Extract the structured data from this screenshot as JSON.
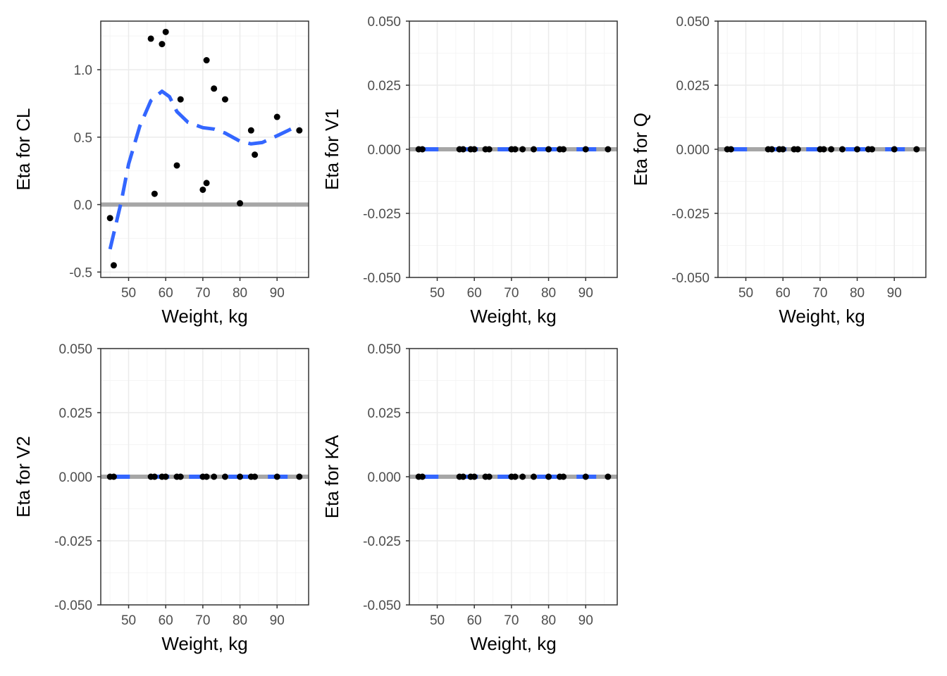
{
  "chart_data": [
    {
      "type": "scatter",
      "xlabel": "Weight, kg",
      "ylabel": "Eta for CL",
      "xlim": [
        42.5,
        98.5
      ],
      "ylim": [
        -0.54,
        1.36
      ],
      "x_ticks": [
        50,
        60,
        70,
        80,
        90
      ],
      "y_ticks": [
        -0.5,
        0.0,
        0.5,
        1.0
      ],
      "y_tick_labels": [
        "-0.5",
        "0.0",
        "0.5",
        "1.0"
      ],
      "grid": true,
      "reference_line": 0,
      "points": [
        {
          "x": 45,
          "y": -0.1
        },
        {
          "x": 46,
          "y": -0.45
        },
        {
          "x": 56,
          "y": 1.23
        },
        {
          "x": 57,
          "y": 0.08
        },
        {
          "x": 59,
          "y": 1.19
        },
        {
          "x": 60,
          "y": 1.28
        },
        {
          "x": 63,
          "y": 0.29
        },
        {
          "x": 64,
          "y": 0.78
        },
        {
          "x": 70,
          "y": 0.11
        },
        {
          "x": 71,
          "y": 1.07
        },
        {
          "x": 71,
          "y": 0.16
        },
        {
          "x": 73,
          "y": 0.86
        },
        {
          "x": 76,
          "y": 0.78
        },
        {
          "x": 80,
          "y": 0.01
        },
        {
          "x": 83,
          "y": 0.55
        },
        {
          "x": 84,
          "y": 0.37
        },
        {
          "x": 90,
          "y": 0.65
        },
        {
          "x": 96,
          "y": 0.55
        }
      ],
      "smooth": [
        {
          "x": 45,
          "y": -0.33
        },
        {
          "x": 48,
          "y": 0.02
        },
        {
          "x": 50,
          "y": 0.3
        },
        {
          "x": 53,
          "y": 0.58
        },
        {
          "x": 56,
          "y": 0.77
        },
        {
          "x": 59,
          "y": 0.84
        },
        {
          "x": 61,
          "y": 0.8
        },
        {
          "x": 63,
          "y": 0.69
        },
        {
          "x": 66,
          "y": 0.61
        },
        {
          "x": 70,
          "y": 0.57
        },
        {
          "x": 73,
          "y": 0.56
        },
        {
          "x": 76,
          "y": 0.53
        },
        {
          "x": 80,
          "y": 0.47
        },
        {
          "x": 83,
          "y": 0.45
        },
        {
          "x": 86,
          "y": 0.46
        },
        {
          "x": 90,
          "y": 0.51
        },
        {
          "x": 93,
          "y": 0.55
        },
        {
          "x": 96,
          "y": 0.59
        }
      ]
    },
    {
      "type": "scatter",
      "xlabel": "Weight, kg",
      "ylabel": "Eta for V1",
      "xlim": [
        42.5,
        98.5
      ],
      "ylim": [
        -0.05,
        0.05
      ],
      "x_ticks": [
        50,
        60,
        70,
        80,
        90
      ],
      "y_ticks": [
        -0.05,
        -0.025,
        0,
        0.025,
        0.05
      ],
      "y_tick_labels": [
        "-0.050",
        "-0.025",
        "0.000",
        "0.025",
        "0.050"
      ],
      "grid": true,
      "reference_line": 0,
      "points_x": [
        45,
        46,
        56,
        57,
        59,
        60,
        63,
        64,
        70,
        71,
        73,
        76,
        80,
        83,
        84,
        90,
        96
      ],
      "points_y": 0,
      "smooth_y": 0
    },
    {
      "type": "scatter",
      "xlabel": "Weight, kg",
      "ylabel": "Eta for Q",
      "xlim": [
        42.5,
        98.5
      ],
      "ylim": [
        -0.05,
        0.05
      ],
      "x_ticks": [
        50,
        60,
        70,
        80,
        90
      ],
      "y_ticks": [
        -0.05,
        -0.025,
        0,
        0.025,
        0.05
      ],
      "y_tick_labels": [
        "-0.050",
        "-0.025",
        "0.000",
        "0.025",
        "0.050"
      ],
      "grid": true,
      "reference_line": 0,
      "points_x": [
        45,
        46,
        56,
        57,
        59,
        60,
        63,
        64,
        70,
        71,
        73,
        76,
        80,
        83,
        84,
        90,
        96
      ],
      "points_y": 0,
      "smooth_y": 0
    },
    {
      "type": "scatter",
      "xlabel": "Weight, kg",
      "ylabel": "Eta for V2",
      "xlim": [
        42.5,
        98.5
      ],
      "ylim": [
        -0.05,
        0.05
      ],
      "x_ticks": [
        50,
        60,
        70,
        80,
        90
      ],
      "y_ticks": [
        -0.05,
        -0.025,
        0,
        0.025,
        0.05
      ],
      "y_tick_labels": [
        "-0.050",
        "-0.025",
        "0.000",
        "0.025",
        "0.050"
      ],
      "grid": true,
      "reference_line": 0,
      "points_x": [
        45,
        46,
        56,
        57,
        59,
        60,
        63,
        64,
        70,
        71,
        73,
        76,
        80,
        83,
        84,
        90,
        96
      ],
      "points_y": 0,
      "smooth_y": 0
    },
    {
      "type": "scatter",
      "xlabel": "Weight, kg",
      "ylabel": "Eta for KA",
      "xlim": [
        42.5,
        98.5
      ],
      "ylim": [
        -0.05,
        0.05
      ],
      "x_ticks": [
        50,
        60,
        70,
        80,
        90
      ],
      "y_ticks": [
        -0.05,
        -0.025,
        0,
        0.025,
        0.05
      ],
      "y_tick_labels": [
        "-0.050",
        "-0.025",
        "0.000",
        "0.025",
        "0.050"
      ],
      "grid": true,
      "reference_line": 0,
      "points_x": [
        45,
        46,
        56,
        57,
        59,
        60,
        63,
        64,
        70,
        71,
        73,
        76,
        80,
        83,
        84,
        90,
        96
      ],
      "points_y": 0,
      "smooth_y": 0
    }
  ],
  "colors": {
    "point": "#000000",
    "smooth": "#3366FF",
    "reference": "#A6A6A6",
    "grid_major": "#EBEBEB",
    "grid_minor": "#F5F5F5",
    "panel_border": "#333333",
    "tick_text": "#4D4D4D"
  }
}
